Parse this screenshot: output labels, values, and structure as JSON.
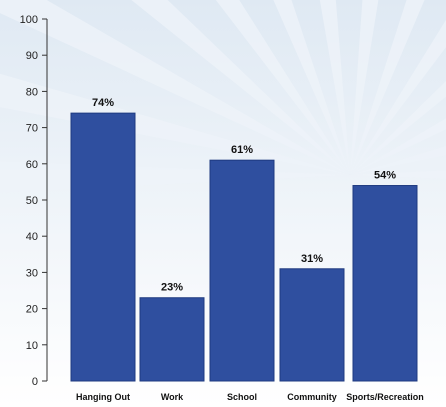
{
  "chart_data": {
    "type": "bar",
    "categories": [
      "Hanging Out",
      "Work",
      "School",
      "Community",
      "Sports/Recreation"
    ],
    "values": [
      74,
      23,
      61,
      31,
      54
    ],
    "data_labels": [
      "74%",
      "23%",
      "61%",
      "31%",
      "54%"
    ],
    "title": "",
    "xlabel": "",
    "ylabel": "",
    "ylim": [
      0,
      100
    ],
    "yticks": [
      0,
      10,
      20,
      30,
      40,
      50,
      60,
      70,
      80,
      90,
      100
    ],
    "grid": false,
    "legend": "none",
    "colors": {
      "bar": "#2f4f9f",
      "bar_stroke": "#1e3a80",
      "axis": "#333333",
      "background_top": "#dfe9f3",
      "background_bottom": "#ffffff",
      "rays": "#eef3f9"
    }
  }
}
